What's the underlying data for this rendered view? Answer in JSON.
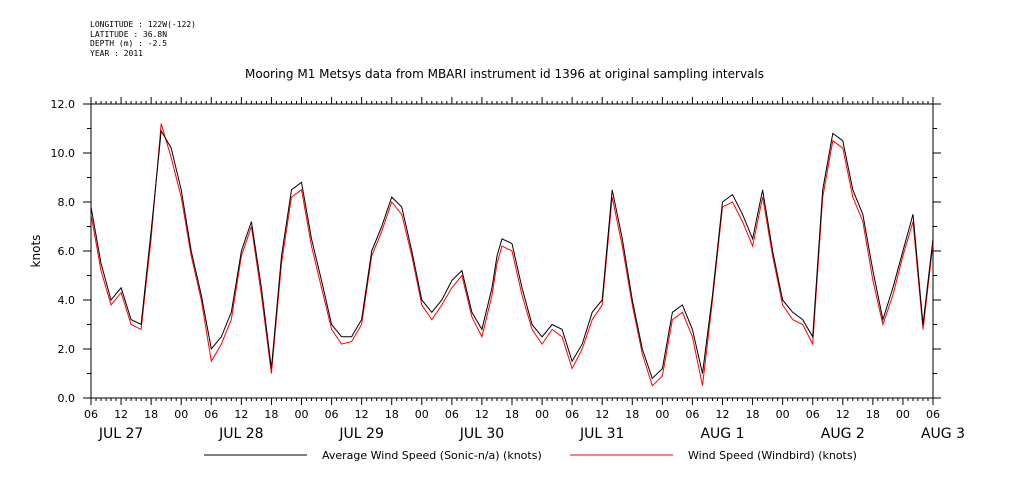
{
  "header": {
    "meta_lines": [
      "LONGITUDE : 122W(-122)",
      "LATITUDE : 36.8N",
      "DEPTH (m) : -2.5",
      "YEAR : 2011"
    ],
    "title": "Mooring M1 Metsys data from MBARI instrument id 1396 at original sampling intervals"
  },
  "chart_data": {
    "type": "line",
    "title": "Mooring M1 Metsys data from MBARI instrument id 1396 at original sampling intervals",
    "xlabel": "",
    "ylabel": "knots",
    "ylim": [
      0,
      12
    ],
    "yticks": [
      "0.0",
      "2.0",
      "4.0",
      "6.0",
      "8.0",
      "10.0",
      "12.0"
    ],
    "xlim_hours": [
      0,
      168
    ],
    "x_hour_ticks": [
      "06",
      "12",
      "18",
      "00",
      "06",
      "12",
      "18",
      "00",
      "06",
      "12",
      "18",
      "00",
      "06",
      "12",
      "18",
      "00",
      "06",
      "12",
      "18",
      "00",
      "06",
      "12",
      "18",
      "00",
      "06",
      "12",
      "18",
      "00",
      "06"
    ],
    "date_labels": [
      "JUL 27",
      "JUL 28",
      "JUL 29",
      "JUL 30",
      "JUL 31",
      "AUG  1",
      "AUG  2",
      "AUG  3"
    ],
    "grid": false,
    "legend_position": "bottom",
    "series": [
      {
        "name": "Average Wind Speed (Sonic-n/a) (knots)",
        "color": "#000000",
        "x_hours": [
          0,
          2,
          4,
          6,
          8,
          10,
          12,
          14,
          16,
          18,
          20,
          22,
          24,
          26,
          28,
          30,
          32,
          34,
          36,
          38,
          40,
          42,
          44,
          46,
          48,
          50,
          52,
          54,
          56,
          58,
          60,
          62,
          64,
          66,
          68,
          70,
          72,
          74,
          76,
          78,
          80,
          81,
          82,
          84,
          86,
          88,
          90,
          92,
          94,
          96,
          98,
          100,
          102,
          104,
          106,
          108,
          110,
          112,
          114,
          116,
          118,
          120,
          122,
          124,
          126,
          128,
          130,
          132,
          134,
          136,
          138,
          140,
          142,
          144,
          146,
          148,
          150,
          152,
          154,
          156,
          158,
          160,
          162,
          164,
          166,
          168
        ],
        "values": [
          7.8,
          5.5,
          4.0,
          4.5,
          3.2,
          3.0,
          6.8,
          10.9,
          10.2,
          8.5,
          6.0,
          4.2,
          2.0,
          2.5,
          3.5,
          6.0,
          7.2,
          4.5,
          1.2,
          5.8,
          8.5,
          8.8,
          6.5,
          4.8,
          3.0,
          2.5,
          2.5,
          3.2,
          6.0,
          7.0,
          8.2,
          7.8,
          6.0,
          4.0,
          3.5,
          4.0,
          4.8,
          5.2,
          3.5,
          2.8,
          4.5,
          5.8,
          6.5,
          6.3,
          4.5,
          3.0,
          2.5,
          3.0,
          2.8,
          1.5,
          2.2,
          3.5,
          4.0,
          8.5,
          6.5,
          4.0,
          2.0,
          0.8,
          1.2,
          3.5,
          3.8,
          2.8,
          1.0,
          4.2,
          8.0,
          8.3,
          7.5,
          6.5,
          8.5,
          6.0,
          4.0,
          3.5,
          3.2,
          2.5,
          8.5,
          10.8,
          10.5,
          8.5,
          7.5,
          5.2,
          3.2,
          4.5,
          6.0,
          7.5,
          3.0,
          6.5
        ]
      },
      {
        "name": "Wind Speed (Windbird) (knots)",
        "color": "#ff0000",
        "x_hours": [
          0,
          2,
          4,
          6,
          8,
          10,
          12,
          14,
          16,
          18,
          20,
          22,
          24,
          26,
          28,
          30,
          32,
          34,
          36,
          38,
          40,
          42,
          44,
          46,
          48,
          50,
          52,
          54,
          56,
          58,
          60,
          62,
          64,
          66,
          68,
          70,
          72,
          74,
          76,
          78,
          80,
          81,
          82,
          84,
          86,
          88,
          90,
          92,
          94,
          96,
          98,
          100,
          102,
          104,
          106,
          108,
          110,
          112,
          114,
          116,
          118,
          120,
          122,
          124,
          126,
          128,
          130,
          132,
          134,
          136,
          138,
          140,
          142,
          144,
          146,
          148,
          150,
          152,
          154,
          156,
          158,
          160,
          162,
          164,
          166,
          168
        ],
        "values": [
          7.5,
          5.2,
          3.8,
          4.3,
          3.0,
          2.8,
          6.5,
          11.2,
          9.8,
          8.2,
          5.8,
          4.0,
          1.5,
          2.2,
          3.2,
          5.8,
          7.0,
          4.2,
          1.0,
          5.5,
          8.2,
          8.5,
          6.2,
          4.5,
          2.8,
          2.2,
          2.3,
          3.0,
          5.8,
          6.8,
          8.0,
          7.5,
          5.8,
          3.8,
          3.2,
          3.8,
          4.5,
          5.0,
          3.3,
          2.5,
          4.2,
          5.5,
          6.2,
          6.0,
          4.2,
          2.8,
          2.2,
          2.8,
          2.5,
          1.2,
          2.0,
          3.2,
          3.8,
          8.2,
          6.2,
          3.8,
          1.8,
          0.5,
          0.9,
          3.2,
          3.5,
          2.5,
          0.5,
          4.0,
          7.8,
          8.0,
          7.2,
          6.2,
          8.2,
          5.8,
          3.8,
          3.2,
          3.0,
          2.2,
          8.2,
          10.5,
          10.2,
          8.2,
          7.2,
          4.8,
          3.0,
          4.2,
          5.8,
          7.2,
          2.8,
          6.3
        ]
      }
    ]
  }
}
